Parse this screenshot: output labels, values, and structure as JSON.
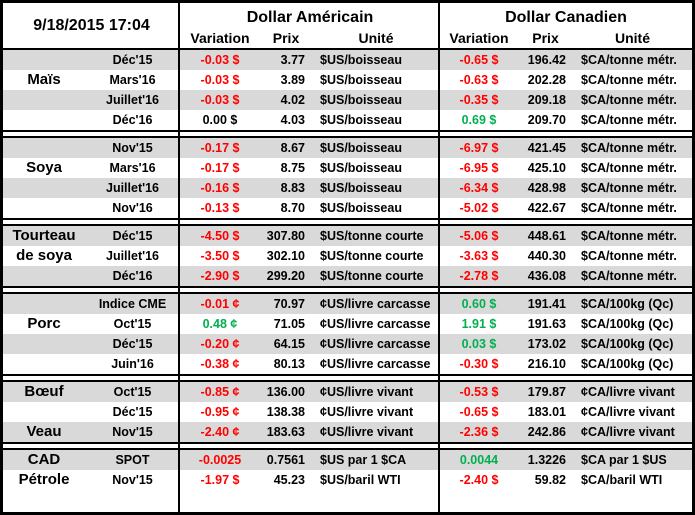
{
  "meta": {
    "timestamp": "9/18/2015 17:04"
  },
  "header": {
    "usd_title": "Dollar Américain",
    "cad_title": "Dollar Canadien",
    "col_variation": "Variation",
    "col_prix": "Prix",
    "col_unite": "Unité"
  },
  "colors": {
    "negative": "#ff0000",
    "positive": "#00b050",
    "row_shade": "#d9d9d9",
    "border": "#000000"
  },
  "sections": [
    {
      "name": "mais",
      "rows": [
        {
          "commodity": "",
          "month": "Déc'15",
          "us_variation": "-0.03 $",
          "us_trend": "neg",
          "us_price": "3.77",
          "us_unit": "$US/boisseau",
          "ca_variation": "-0.65 $",
          "ca_trend": "neg",
          "ca_price": "196.42",
          "ca_unit": "$CA/tonne métr.",
          "shaded": true
        },
        {
          "commodity": "Maïs",
          "month": "Mars'16",
          "us_variation": "-0.03 $",
          "us_trend": "neg",
          "us_price": "3.89",
          "us_unit": "$US/boisseau",
          "ca_variation": "-0.63 $",
          "ca_trend": "neg",
          "ca_price": "202.28",
          "ca_unit": "$CA/tonne métr.",
          "shaded": false
        },
        {
          "commodity": "",
          "month": "Juillet'16",
          "us_variation": "-0.03 $",
          "us_trend": "neg",
          "us_price": "4.02",
          "us_unit": "$US/boisseau",
          "ca_variation": "-0.35 $",
          "ca_trend": "neg",
          "ca_price": "209.18",
          "ca_unit": "$CA/tonne métr.",
          "shaded": true
        },
        {
          "commodity": "",
          "month": "Déc'16",
          "us_variation": "0.00 $",
          "us_trend": "flat",
          "us_price": "4.03",
          "us_unit": "$US/boisseau",
          "ca_variation": "0.69 $",
          "ca_trend": "pos",
          "ca_price": "209.70",
          "ca_unit": "$CA/tonne métr.",
          "shaded": false
        }
      ]
    },
    {
      "name": "soya",
      "rows": [
        {
          "commodity": "",
          "month": "Nov'15",
          "us_variation": "-0.17 $",
          "us_trend": "neg",
          "us_price": "8.67",
          "us_unit": "$US/boisseau",
          "ca_variation": "-6.97 $",
          "ca_trend": "neg",
          "ca_price": "421.45",
          "ca_unit": "$CA/tonne métr.",
          "shaded": true
        },
        {
          "commodity": "Soya",
          "month": "Mars'16",
          "us_variation": "-0.17 $",
          "us_trend": "neg",
          "us_price": "8.75",
          "us_unit": "$US/boisseau",
          "ca_variation": "-6.95 $",
          "ca_trend": "neg",
          "ca_price": "425.10",
          "ca_unit": "$CA/tonne métr.",
          "shaded": false
        },
        {
          "commodity": "",
          "month": "Juillet'16",
          "us_variation": "-0.16 $",
          "us_trend": "neg",
          "us_price": "8.83",
          "us_unit": "$US/boisseau",
          "ca_variation": "-6.34 $",
          "ca_trend": "neg",
          "ca_price": "428.98",
          "ca_unit": "$CA/tonne métr.",
          "shaded": true
        },
        {
          "commodity": "",
          "month": "Nov'16",
          "us_variation": "-0.13 $",
          "us_trend": "neg",
          "us_price": "8.70",
          "us_unit": "$US/boisseau",
          "ca_variation": "-5.02 $",
          "ca_trend": "neg",
          "ca_price": "422.67",
          "ca_unit": "$CA/tonne métr.",
          "shaded": false
        }
      ]
    },
    {
      "name": "tourteau-de-soya",
      "rows": [
        {
          "commodity": "Tourteau",
          "month": "Déc'15",
          "us_variation": "-4.50 $",
          "us_trend": "neg",
          "us_price": "307.80",
          "us_unit": "$US/tonne courte",
          "ca_variation": "-5.06 $",
          "ca_trend": "neg",
          "ca_price": "448.61",
          "ca_unit": "$CA/tonne métr.",
          "shaded": true
        },
        {
          "commodity": "de soya",
          "month": "Juillet'16",
          "us_variation": "-3.50 $",
          "us_trend": "neg",
          "us_price": "302.10",
          "us_unit": "$US/tonne courte",
          "ca_variation": "-3.63 $",
          "ca_trend": "neg",
          "ca_price": "440.30",
          "ca_unit": "$CA/tonne métr.",
          "shaded": false
        },
        {
          "commodity": "",
          "month": "Déc'16",
          "us_variation": "-2.90 $",
          "us_trend": "neg",
          "us_price": "299.20",
          "us_unit": "$US/tonne courte",
          "ca_variation": "-2.78 $",
          "ca_trend": "neg",
          "ca_price": "436.08",
          "ca_unit": "$CA/tonne métr.",
          "shaded": true
        }
      ]
    },
    {
      "name": "porc",
      "rows": [
        {
          "commodity": "",
          "month": "Indice CME",
          "us_variation": "-0.01 ¢",
          "us_trend": "neg",
          "us_price": "70.97",
          "us_unit": "¢US/livre carcasse",
          "ca_variation": "0.60 $",
          "ca_trend": "pos",
          "ca_price": "191.41",
          "ca_unit": "$CA/100kg (Qc)",
          "shaded": true
        },
        {
          "commodity": "Porc",
          "month": "Oct'15",
          "us_variation": "0.48 ¢",
          "us_trend": "pos",
          "us_price": "71.05",
          "us_unit": "¢US/livre carcasse",
          "ca_variation": "1.91 $",
          "ca_trend": "pos",
          "ca_price": "191.63",
          "ca_unit": "$CA/100kg (Qc)",
          "shaded": false
        },
        {
          "commodity": "",
          "month": "Déc'15",
          "us_variation": "-0.20 ¢",
          "us_trend": "neg",
          "us_price": "64.15",
          "us_unit": "¢US/livre carcasse",
          "ca_variation": "0.03 $",
          "ca_trend": "pos",
          "ca_price": "173.02",
          "ca_unit": "$CA/100kg (Qc)",
          "shaded": true
        },
        {
          "commodity": "",
          "month": "Juin'16",
          "us_variation": "-0.38 ¢",
          "us_trend": "neg",
          "us_price": "80.13",
          "us_unit": "¢US/livre carcasse",
          "ca_variation": "-0.30 $",
          "ca_trend": "neg",
          "ca_price": "216.10",
          "ca_unit": "$CA/100kg (Qc)",
          "shaded": false
        }
      ]
    },
    {
      "name": "boeuf-veau",
      "rows": [
        {
          "commodity": "Bœuf",
          "month": "Oct'15",
          "us_variation": "-0.85 ¢",
          "us_trend": "neg",
          "us_price": "136.00",
          "us_unit": "¢US/livre vivant",
          "ca_variation": "-0.53 $",
          "ca_trend": "neg",
          "ca_price": "179.87",
          "ca_unit": "¢CA/livre vivant",
          "shaded": true
        },
        {
          "commodity": "",
          "month": "Déc'15",
          "us_variation": "-0.95 ¢",
          "us_trend": "neg",
          "us_price": "138.38",
          "us_unit": "¢US/livre vivant",
          "ca_variation": "-0.65 $",
          "ca_trend": "neg",
          "ca_price": "183.01",
          "ca_unit": "¢CA/livre vivant",
          "shaded": false
        },
        {
          "commodity": "Veau",
          "month": "Nov'15",
          "us_variation": "-2.40 ¢",
          "us_trend": "neg",
          "us_price": "183.63",
          "us_unit": "¢US/livre vivant",
          "ca_variation": "-2.36 $",
          "ca_trend": "neg",
          "ca_price": "242.86",
          "ca_unit": "¢CA/livre vivant",
          "shaded": true
        }
      ]
    },
    {
      "name": "cad-petrole",
      "rows": [
        {
          "commodity": "CAD",
          "month": "SPOT",
          "us_variation": "-0.0025",
          "us_trend": "neg",
          "us_price": "0.7561",
          "us_unit": "$US par 1 $CA",
          "ca_variation": "0.0044",
          "ca_trend": "pos",
          "ca_price": "1.3226",
          "ca_unit": "$CA par 1 $US",
          "shaded": true
        },
        {
          "commodity": "Pétrole",
          "month": "Nov'15",
          "us_variation": "-1.97 $",
          "us_trend": "neg",
          "us_price": "45.23",
          "us_unit": "$US/baril WTI",
          "ca_variation": "-2.40 $",
          "ca_trend": "neg",
          "ca_price": "59.82",
          "ca_unit": "$CA/baril WTI",
          "shaded": false
        }
      ]
    }
  ]
}
